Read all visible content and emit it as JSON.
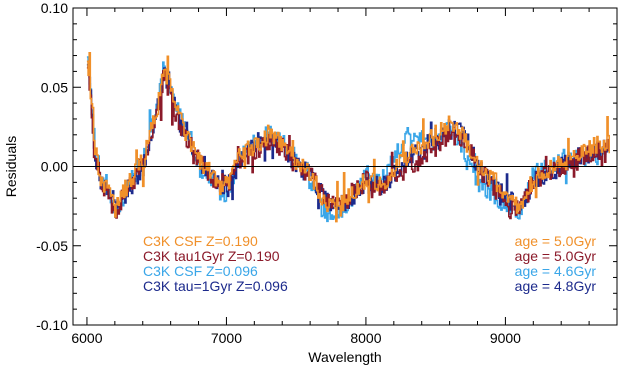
{
  "chart_data": {
    "type": "line",
    "title": "",
    "xlabel": "Wavelength",
    "ylabel": "Residuals",
    "xlim": [
      5900,
      9800
    ],
    "ylim": [
      -0.1,
      0.1
    ],
    "xticks": [
      6000,
      7000,
      8000,
      9000
    ],
    "xtick_labels": [
      "6000",
      "7000",
      "8000",
      "9000"
    ],
    "yticks": [
      -0.1,
      -0.05,
      0.0,
      0.05,
      0.1
    ],
    "ytick_labels": [
      "-0.10",
      "-0.05",
      "0.00",
      "0.05",
      "0.10"
    ],
    "zero_line": 0.0,
    "grid": false,
    "legend_left": [
      {
        "label": "C3K CSF Z=0.190",
        "color": "#f0902a"
      },
      {
        "label": "C3K tau1Gyr Z=0.190",
        "color": "#8b1a2a"
      },
      {
        "label": "C3K CSF Z=0.096",
        "color": "#3aa6e8"
      },
      {
        "label": "C3K tau=1Gyr Z=0.096",
        "color": "#1c2a8c"
      }
    ],
    "legend_right": [
      {
        "label": "age = 5.0Gyr",
        "color": "#f0902a"
      },
      {
        "label": "age = 5.0Gyr",
        "color": "#8b1a2a"
      },
      {
        "label": "age = 4.6Gyr",
        "color": "#3aa6e8"
      },
      {
        "label": "age = 4.8Gyr",
        "color": "#1c2a8c"
      }
    ],
    "series": [
      {
        "color": "#3aa6e8",
        "x": [
          6000,
          6050,
          6100,
          6200,
          6300,
          6400,
          6500,
          6550,
          6600,
          6650,
          6700,
          6800,
          6900,
          7000,
          7100,
          7200,
          7300,
          7400,
          7500,
          7600,
          7700,
          7800,
          7900,
          8000,
          8100,
          8200,
          8300,
          8400,
          8500,
          8600,
          8700,
          8800,
          8900,
          9000,
          9100,
          9200,
          9300,
          9400,
          9500,
          9600,
          9700,
          9750
        ],
        "y": [
          0.075,
          0.015,
          -0.005,
          -0.03,
          -0.01,
          0.005,
          0.04,
          0.065,
          0.045,
          0.035,
          0.025,
          0.0,
          -0.01,
          -0.02,
          0.01,
          0.015,
          0.02,
          0.015,
          0.005,
          -0.01,
          -0.03,
          -0.03,
          -0.02,
          -0.005,
          -0.01,
          0.005,
          0.02,
          0.02,
          0.015,
          0.025,
          0.01,
          -0.01,
          -0.02,
          -0.025,
          -0.03,
          -0.005,
          0.0,
          0.005,
          0.005,
          0.01,
          0.005,
          0.015
        ]
      },
      {
        "color": "#1c2a8c",
        "x": [
          6000,
          6050,
          6100,
          6200,
          6300,
          6400,
          6500,
          6550,
          6600,
          6650,
          6700,
          6800,
          6900,
          7000,
          7100,
          7200,
          7300,
          7400,
          7500,
          7600,
          7700,
          7800,
          7900,
          8000,
          8100,
          8200,
          8300,
          8400,
          8500,
          8600,
          8700,
          8800,
          8900,
          9000,
          9100,
          9200,
          9300,
          9400,
          9500,
          9600,
          9700,
          9750
        ],
        "y": [
          0.07,
          0.01,
          -0.01,
          -0.025,
          -0.015,
          0.0,
          0.035,
          0.06,
          0.045,
          0.03,
          0.02,
          0.005,
          -0.005,
          -0.015,
          0.005,
          0.015,
          0.018,
          0.015,
          0.0,
          -0.005,
          -0.02,
          -0.025,
          -0.02,
          -0.01,
          -0.015,
          -0.005,
          0.005,
          0.01,
          0.015,
          0.025,
          0.02,
          0.0,
          -0.01,
          -0.02,
          -0.025,
          -0.01,
          -0.005,
          0.0,
          0.005,
          0.008,
          0.01,
          0.015
        ]
      },
      {
        "color": "#8b1a2a",
        "x": [
          6000,
          6050,
          6100,
          6200,
          6300,
          6400,
          6500,
          6550,
          6600,
          6650,
          6700,
          6800,
          6900,
          7000,
          7100,
          7200,
          7300,
          7400,
          7500,
          7600,
          7700,
          7800,
          7900,
          8000,
          8100,
          8200,
          8300,
          8400,
          8500,
          8600,
          8700,
          8800,
          8900,
          9000,
          9100,
          9200,
          9300,
          9400,
          9500,
          9600,
          9700,
          9750
        ],
        "y": [
          0.068,
          0.008,
          -0.01,
          -0.028,
          -0.012,
          0.002,
          0.032,
          0.058,
          0.042,
          0.03,
          0.018,
          0.005,
          -0.008,
          -0.012,
          0.005,
          0.01,
          0.015,
          0.012,
          0.0,
          -0.005,
          -0.02,
          -0.025,
          -0.018,
          -0.008,
          -0.015,
          -0.008,
          0.0,
          0.005,
          0.012,
          0.022,
          0.018,
          0.0,
          -0.012,
          -0.022,
          -0.028,
          -0.01,
          -0.005,
          0.0,
          0.005,
          0.008,
          0.01,
          0.012
        ]
      },
      {
        "color": "#f0902a",
        "x": [
          6000,
          6050,
          6100,
          6200,
          6300,
          6400,
          6500,
          6550,
          6600,
          6650,
          6700,
          6800,
          6900,
          7000,
          7100,
          7200,
          7300,
          7400,
          7500,
          7600,
          7700,
          7800,
          7900,
          8000,
          8100,
          8200,
          8300,
          8400,
          8500,
          8600,
          8700,
          8800,
          8900,
          9000,
          9100,
          9200,
          9300,
          9400,
          9500,
          9600,
          9700,
          9750
        ],
        "y": [
          0.072,
          0.012,
          -0.008,
          -0.025,
          -0.01,
          0.005,
          0.035,
          0.062,
          0.048,
          0.032,
          0.022,
          0.005,
          -0.005,
          -0.012,
          0.008,
          0.012,
          0.018,
          0.015,
          0.002,
          -0.005,
          -0.022,
          -0.025,
          -0.018,
          -0.008,
          -0.012,
          -0.002,
          0.008,
          0.012,
          0.02,
          0.028,
          0.02,
          0.002,
          -0.008,
          -0.018,
          -0.025,
          -0.008,
          -0.002,
          0.002,
          0.008,
          0.012,
          0.015,
          0.02
        ]
      }
    ]
  }
}
